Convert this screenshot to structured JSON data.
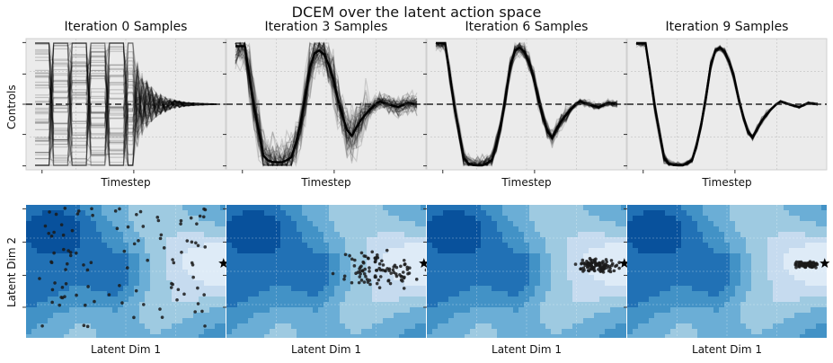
{
  "figure": {
    "title": "DCEM over the latent action space"
  },
  "chart_data": [
    {
      "type": "line",
      "title": "Iteration 0 Samples",
      "xlabel": "Timestep",
      "ylabel": "Controls",
      "ylim": [
        -1,
        1
      ],
      "reference_line": 0,
      "grid": true
    },
    {
      "type": "line",
      "title": "Iteration 3 Samples",
      "xlabel": "Timestep",
      "ylabel": "",
      "ylim": [
        -1,
        1
      ],
      "reference_line": 0,
      "grid": true
    },
    {
      "type": "line",
      "title": "Iteration 6 Samples",
      "xlabel": "Timestep",
      "ylabel": "",
      "ylim": [
        -1,
        1
      ],
      "reference_line": 0,
      "grid": true
    },
    {
      "type": "line",
      "title": "Iteration 9 Samples",
      "xlabel": "Timestep",
      "ylabel": "",
      "ylim": [
        -1,
        1
      ],
      "reference_line": 0,
      "grid": true
    },
    {
      "type": "scatter",
      "title": "",
      "xlabel": "Latent Dim 1",
      "ylabel": "Latent Dim 2",
      "background": "contourf",
      "colormap": "Blues",
      "optimum_marker": "star",
      "grid": true
    },
    {
      "type": "scatter",
      "title": "",
      "xlabel": "Latent Dim 1",
      "ylabel": "",
      "background": "contourf",
      "colormap": "Blues",
      "optimum_marker": "star",
      "grid": true
    },
    {
      "type": "scatter",
      "title": "",
      "xlabel": "Latent Dim 1",
      "ylabel": "",
      "background": "contourf",
      "colormap": "Blues",
      "optimum_marker": "star",
      "grid": true
    },
    {
      "type": "scatter",
      "title": "",
      "xlabel": "Latent Dim 1",
      "ylabel": "",
      "background": "contourf",
      "colormap": "Blues",
      "optimum_marker": "star",
      "grid": true
    }
  ],
  "colors": {
    "axes_bg": "#ebebeb",
    "grid": "#c8c8c8",
    "line": "#000000",
    "contour_levels": [
      "#08306b",
      "#08519c",
      "#2171b5",
      "#4292c6",
      "#6baed6",
      "#9ecae1",
      "#c6dbef",
      "#deebf7"
    ]
  }
}
